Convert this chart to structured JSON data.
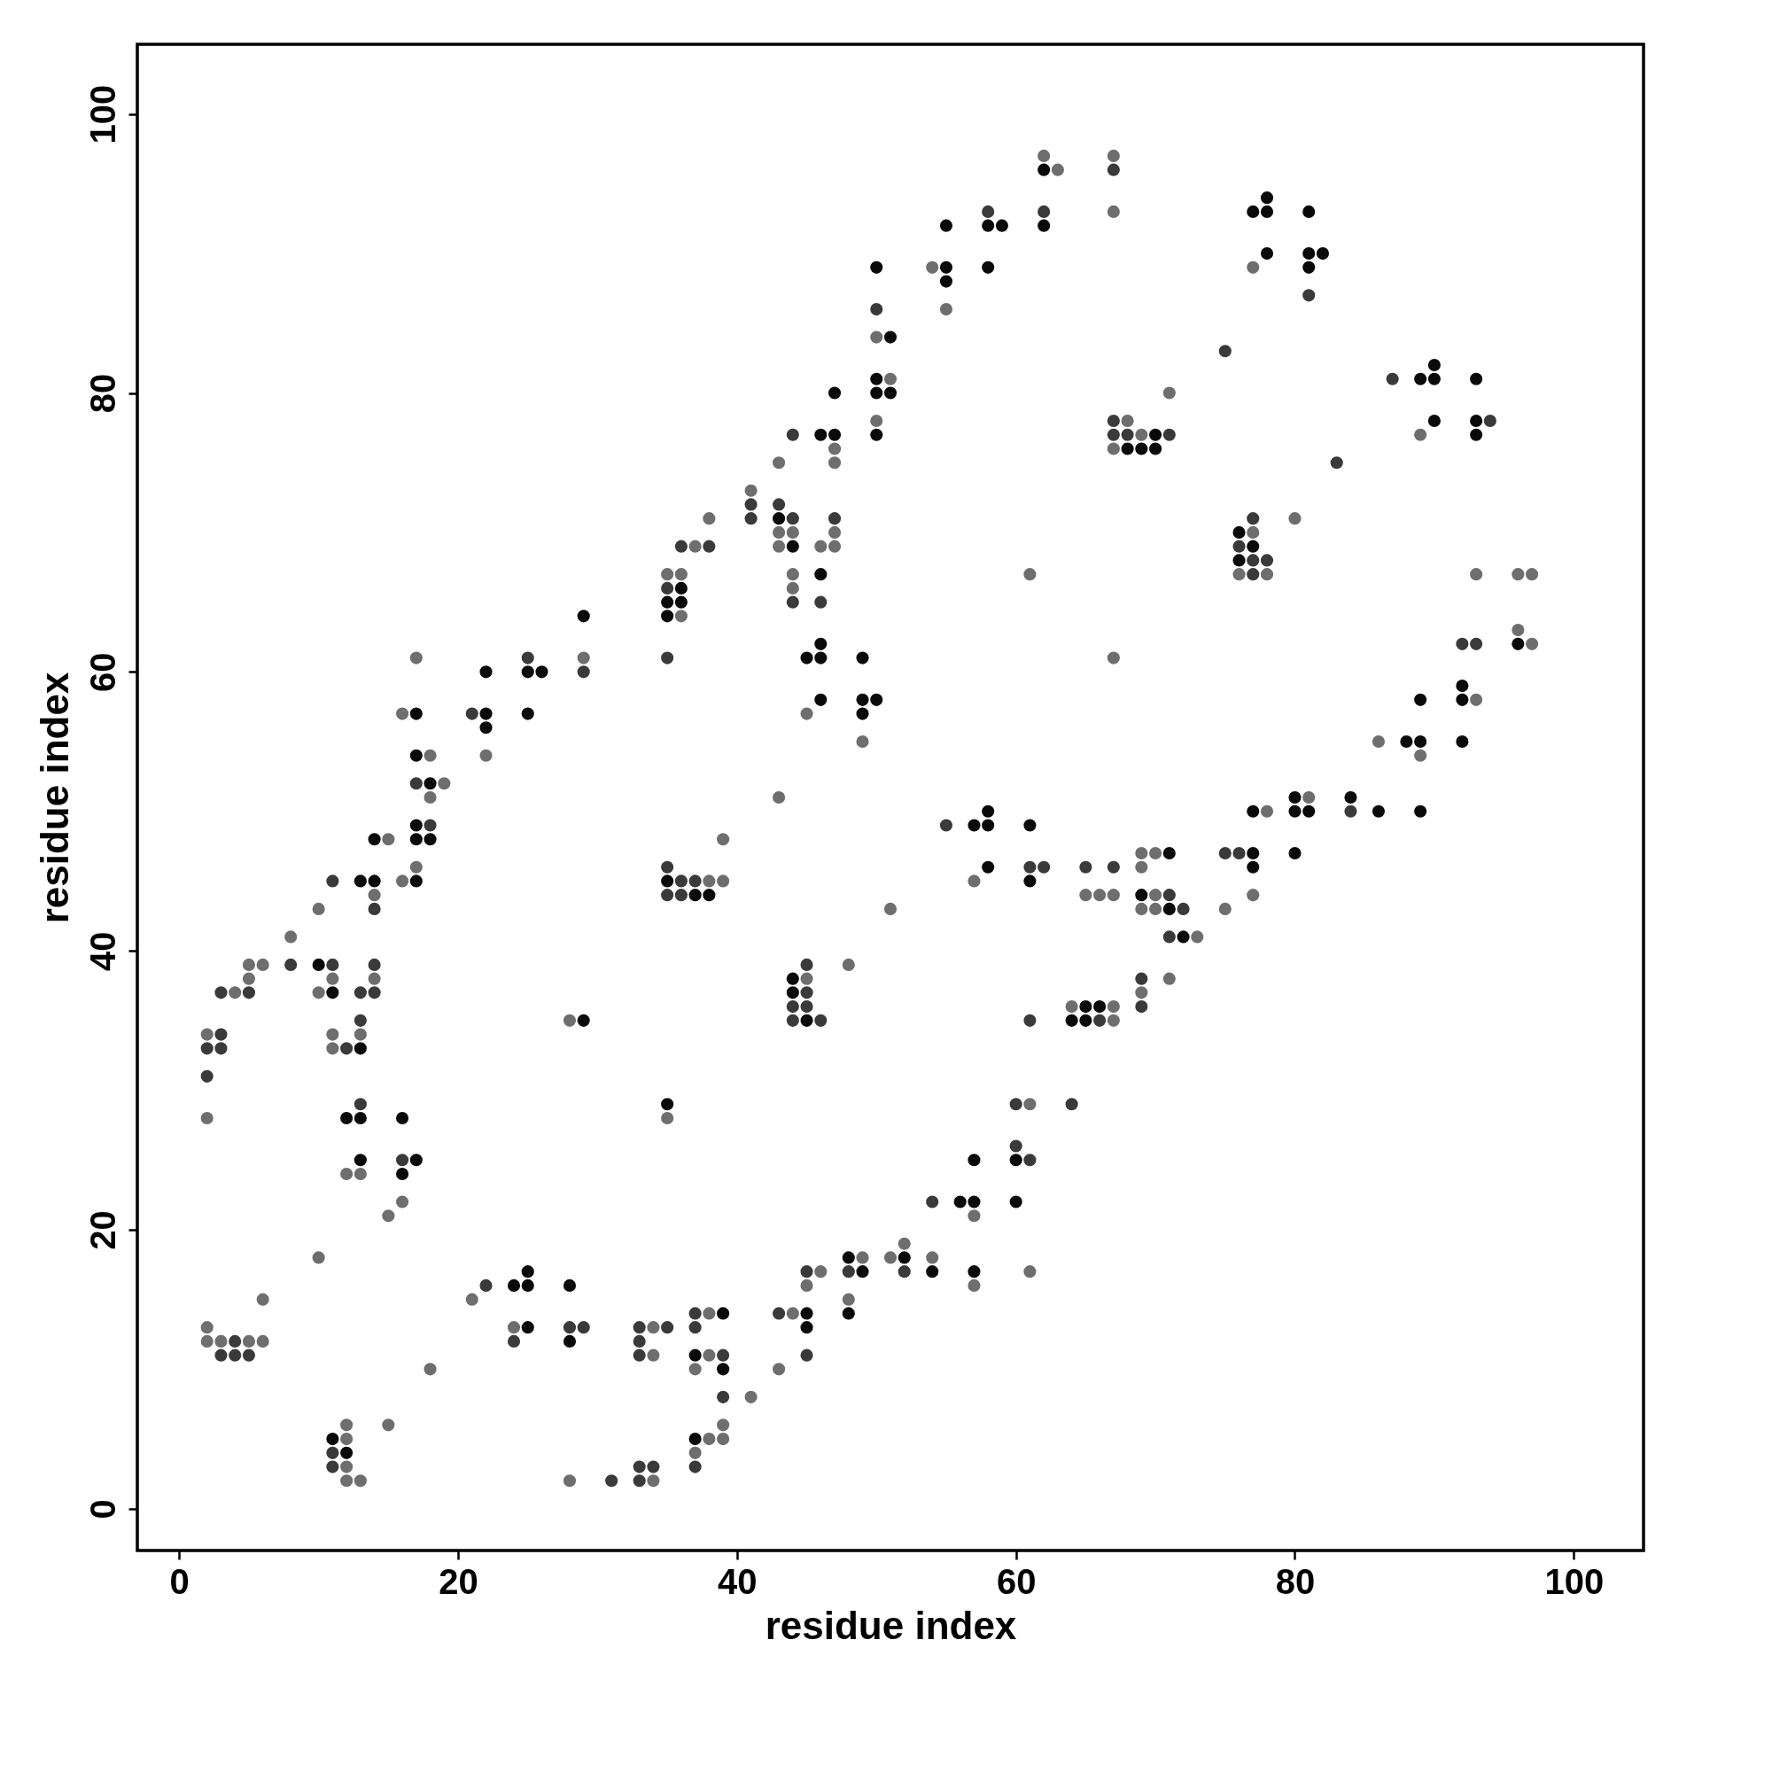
{
  "chart_data": {
    "type": "scatter",
    "xlabel": "residue index",
    "ylabel": "residue index",
    "xlim": [
      -3,
      105
    ],
    "ylim": [
      -3,
      105
    ],
    "xticks": [
      0,
      20,
      40,
      60,
      80,
      100
    ],
    "yticks": [
      0,
      20,
      40,
      60,
      80,
      100
    ],
    "grid": false,
    "legend": false,
    "marker": "circle",
    "series": [
      {
        "color": "#0a0a0a",
        "x": [
          10,
          11,
          11,
          12,
          12,
          13,
          13,
          13,
          13,
          14,
          14,
          16,
          16,
          17,
          17,
          17,
          17,
          17,
          17,
          18,
          18,
          22,
          22,
          22,
          24,
          25,
          25,
          25,
          25,
          25,
          26,
          28,
          28,
          29,
          29,
          35,
          35,
          35,
          35,
          36,
          36,
          37,
          37,
          37,
          38,
          39,
          39,
          43,
          44,
          44,
          44,
          45,
          45,
          45,
          45,
          46,
          46,
          46,
          46,
          46,
          47,
          47,
          48,
          48,
          49,
          49,
          49,
          49,
          50,
          50,
          50,
          50,
          50,
          51,
          51,
          52,
          54,
          55,
          55,
          55,
          56,
          57,
          57,
          57,
          57,
          58,
          58,
          58,
          58,
          58,
          59,
          60,
          60,
          61,
          61,
          62,
          62,
          64,
          65,
          65,
          66,
          68,
          69,
          69,
          70,
          70,
          71,
          71,
          72,
          76,
          76,
          77,
          77,
          77,
          77,
          77,
          78,
          78,
          78,
          80,
          80,
          80,
          81,
          81,
          81,
          81,
          82,
          84,
          86,
          88,
          89,
          89,
          89,
          89,
          90,
          90,
          90,
          92,
          92,
          92,
          93,
          93,
          93,
          96
        ],
        "values": [
          39,
          37,
          5,
          28,
          4,
          45,
          33,
          28,
          25,
          48,
          45,
          28,
          24,
          57,
          54,
          49,
          48,
          45,
          25,
          52,
          48,
          60,
          57,
          56,
          16,
          60,
          57,
          17,
          16,
          13,
          60,
          16,
          12,
          64,
          35,
          65,
          64,
          45,
          29,
          66,
          65,
          44,
          11,
          5,
          44,
          14,
          10,
          71,
          69,
          38,
          37,
          61,
          35,
          14,
          13,
          77,
          67,
          62,
          61,
          58,
          80,
          77,
          18,
          14,
          61,
          58,
          57,
          17,
          89,
          81,
          80,
          77,
          58,
          84,
          80,
          18,
          17,
          92,
          89,
          88,
          22,
          49,
          25,
          22,
          17,
          92,
          89,
          50,
          49,
          46,
          92,
          25,
          22,
          49,
          45,
          96,
          92,
          35,
          36,
          35,
          36,
          76,
          76,
          44,
          77,
          76,
          47,
          43,
          41,
          70,
          68,
          93,
          69,
          50,
          47,
          46,
          94,
          93,
          90,
          51,
          50,
          47,
          93,
          90,
          89,
          50,
          90,
          51,
          50,
          55,
          81,
          58,
          55,
          50,
          82,
          81,
          78,
          59,
          58,
          55,
          81,
          78,
          77,
          62
        ]
      },
      {
        "color": "#3a3a3a",
        "x": [
          2,
          2,
          3,
          3,
          3,
          3,
          4,
          4,
          5,
          5,
          8,
          11,
          11,
          11,
          11,
          12,
          13,
          13,
          13,
          14,
          14,
          14,
          16,
          17,
          18,
          21,
          22,
          24,
          25,
          28,
          29,
          29,
          31,
          33,
          33,
          33,
          33,
          33,
          34,
          35,
          35,
          35,
          35,
          35,
          36,
          36,
          36,
          37,
          37,
          37,
          37,
          38,
          39,
          39,
          41,
          41,
          43,
          43,
          44,
          44,
          44,
          44,
          44,
          45,
          45,
          45,
          45,
          45,
          46,
          46,
          47,
          48,
          50,
          52,
          54,
          55,
          58,
          60,
          60,
          61,
          61,
          61,
          62,
          62,
          64,
          65,
          66,
          67,
          67,
          67,
          67,
          68,
          69,
          69,
          71,
          71,
          71,
          72,
          75,
          75,
          76,
          76,
          77,
          77,
          77,
          78,
          81,
          83,
          84,
          87,
          92,
          93,
          94
        ],
        "values": [
          33,
          31,
          34,
          33,
          37,
          11,
          12,
          11,
          37,
          11,
          39,
          45,
          39,
          4,
          3,
          33,
          37,
          35,
          29,
          43,
          39,
          37,
          25,
          52,
          49,
          57,
          16,
          12,
          61,
          13,
          60,
          13,
          2,
          13,
          12,
          11,
          3,
          2,
          3,
          66,
          61,
          46,
          44,
          13,
          69,
          45,
          44,
          45,
          14,
          13,
          3,
          69,
          11,
          8,
          72,
          71,
          72,
          14,
          77,
          71,
          65,
          36,
          35,
          39,
          37,
          36,
          17,
          11,
          65,
          35,
          71,
          17,
          86,
          17,
          22,
          49,
          93,
          29,
          26,
          46,
          35,
          25,
          93,
          46,
          29,
          46,
          35,
          96,
          78,
          77,
          46,
          77,
          38,
          36,
          77,
          44,
          41,
          43,
          83,
          47,
          69,
          47,
          71,
          68,
          67,
          68,
          87,
          75,
          50,
          81,
          62,
          62,
          78
        ]
      },
      {
        "color": "#6e6e6e",
        "x": [
          2,
          2,
          2,
          2,
          3,
          4,
          5,
          5,
          5,
          6,
          6,
          6,
          8,
          10,
          10,
          10,
          11,
          11,
          11,
          12,
          12,
          12,
          12,
          12,
          13,
          13,
          13,
          14,
          14,
          15,
          15,
          15,
          16,
          16,
          16,
          17,
          17,
          18,
          18,
          18,
          19,
          21,
          22,
          24,
          28,
          28,
          29,
          34,
          34,
          34,
          35,
          35,
          36,
          36,
          37,
          37,
          37,
          38,
          38,
          38,
          38,
          38,
          39,
          39,
          39,
          39,
          41,
          41,
          43,
          43,
          43,
          43,
          43,
          44,
          44,
          44,
          44,
          45,
          45,
          45,
          46,
          46,
          47,
          47,
          47,
          47,
          48,
          48,
          49,
          49,
          50,
          50,
          51,
          51,
          51,
          52,
          54,
          54,
          55,
          57,
          57,
          57,
          61,
          61,
          61,
          62,
          63,
          64,
          65,
          66,
          67,
          67,
          67,
          67,
          67,
          67,
          67,
          68,
          69,
          69,
          69,
          69,
          69,
          70,
          70,
          70,
          71,
          71,
          73,
          75,
          76,
          77,
          77,
          77,
          78,
          78,
          80,
          81,
          86,
          89,
          89,
          93,
          93,
          96,
          96,
          97,
          97
        ],
        "values": [
          34,
          28,
          13,
          12,
          12,
          37,
          39,
          38,
          12,
          39,
          15,
          12,
          41,
          43,
          37,
          18,
          38,
          34,
          33,
          24,
          6,
          5,
          3,
          2,
          34,
          24,
          2,
          44,
          38,
          48,
          21,
          6,
          57,
          45,
          22,
          61,
          46,
          54,
          51,
          10,
          52,
          15,
          54,
          13,
          35,
          2,
          61,
          13,
          11,
          2,
          67,
          28,
          67,
          64,
          69,
          10,
          4,
          71,
          45,
          14,
          11,
          5,
          48,
          45,
          6,
          5,
          73,
          8,
          75,
          70,
          69,
          51,
          10,
          70,
          67,
          66,
          14,
          57,
          38,
          16,
          69,
          17,
          76,
          75,
          70,
          69,
          39,
          15,
          55,
          18,
          84,
          78,
          81,
          43,
          18,
          19,
          89,
          18,
          86,
          45,
          21,
          16,
          67,
          29,
          17,
          97,
          96,
          36,
          44,
          44,
          97,
          93,
          76,
          61,
          44,
          36,
          35,
          78,
          77,
          47,
          46,
          43,
          37,
          47,
          44,
          43,
          80,
          38,
          41,
          43,
          67,
          89,
          70,
          44,
          67,
          50,
          71,
          51,
          55,
          77,
          54,
          67,
          58,
          67,
          63,
          67,
          62
        ]
      }
    ]
  }
}
